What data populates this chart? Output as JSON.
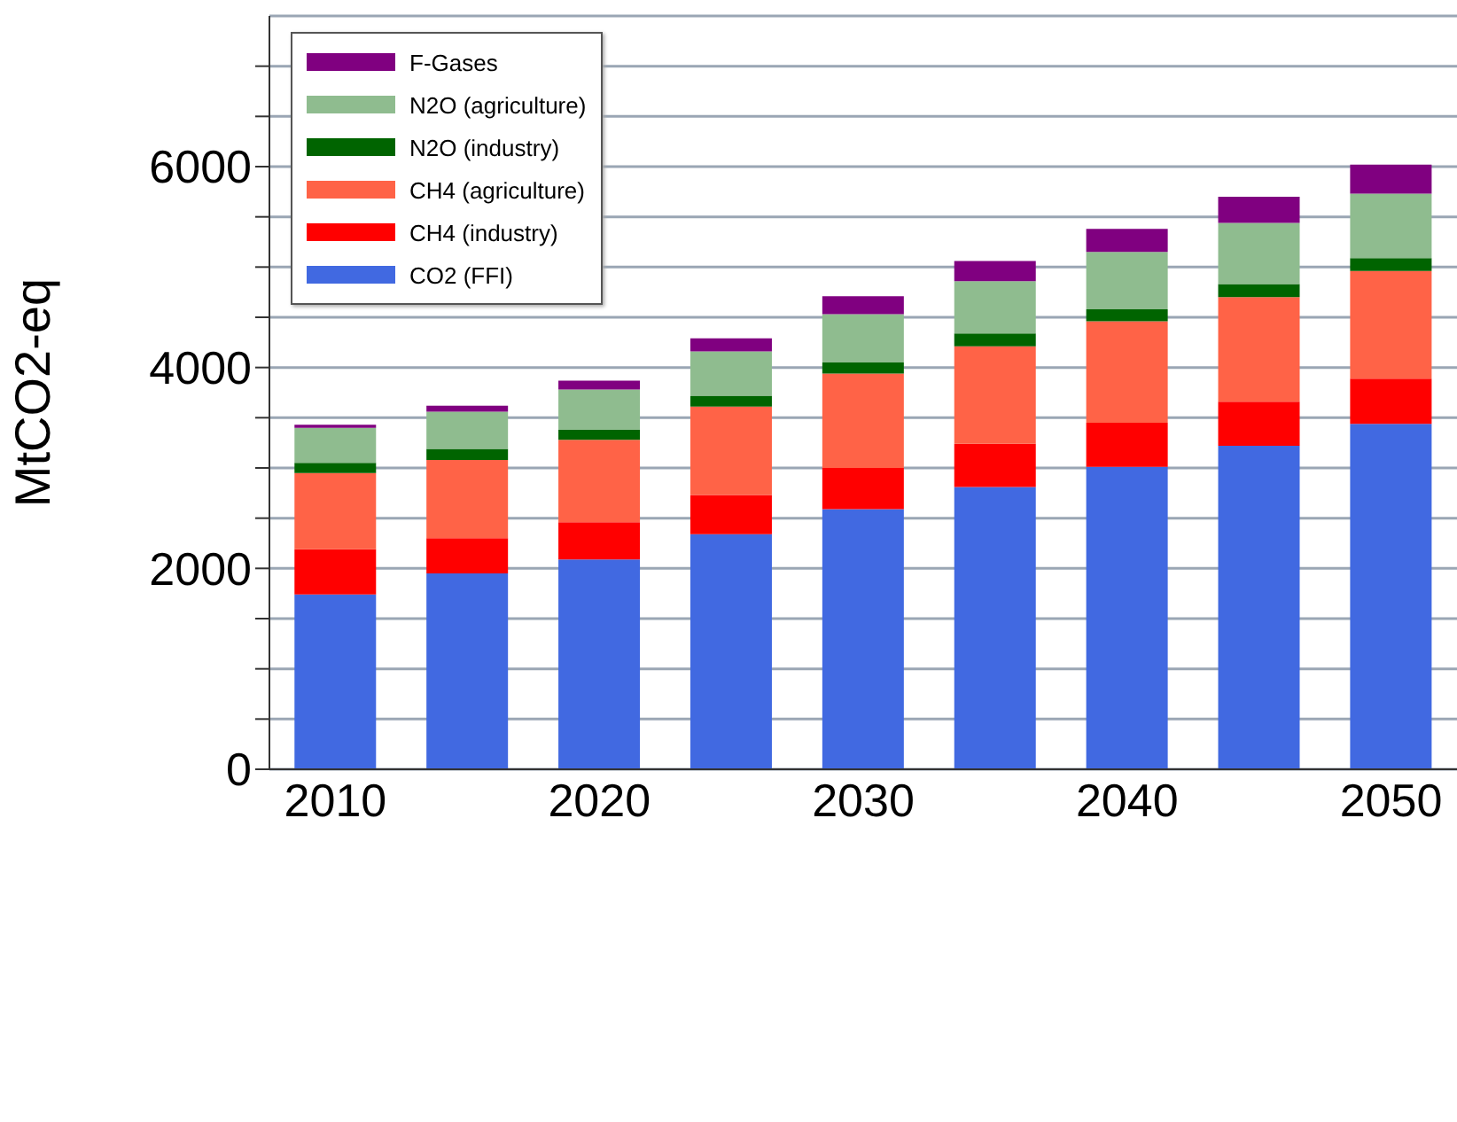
{
  "chart_data": {
    "type": "bar",
    "stacked": true,
    "ylabel": "MtCO2-eq",
    "categories": [
      "2010",
      null,
      "2020",
      null,
      "2030",
      null,
      "2040",
      null,
      "2050"
    ],
    "series": [
      {
        "name": "CO2 (FFI)",
        "color": "#4169e1",
        "values": [
          1740,
          1950,
          2090,
          2340,
          2590,
          2810,
          3010,
          3220,
          3440
        ]
      },
      {
        "name": "CH4 (industry)",
        "color": "#ff0000",
        "values": [
          450,
          350,
          370,
          390,
          410,
          430,
          440,
          440,
          450
        ]
      },
      {
        "name": "CH4 (agriculture)",
        "color": "#ff6347",
        "values": [
          760,
          780,
          820,
          880,
          940,
          970,
          1010,
          1040,
          1070
        ]
      },
      {
        "name": "N2O (industry)",
        "color": "#006400",
        "values": [
          100,
          110,
          100,
          110,
          110,
          130,
          120,
          130,
          130
        ]
      },
      {
        "name": "N2O (agriculture)",
        "color": "#8fbc8f",
        "values": [
          350,
          370,
          400,
          440,
          480,
          520,
          570,
          610,
          640
        ]
      },
      {
        "name": "F-Gases",
        "color": "#800080",
        "values": [
          30,
          60,
          90,
          130,
          180,
          200,
          230,
          260,
          290
        ]
      }
    ],
    "ylim": [
      0,
      7500
    ],
    "yticks": [
      0,
      {
        "value": 500,
        "label": null
      },
      2000,
      {
        "value": 1000,
        "label": null
      },
      {
        "value": 1500,
        "label": null
      },
      {
        "value": 2500,
        "label": null
      },
      {
        "value": 3000,
        "label": null
      },
      {
        "value": 3500,
        "label": null
      },
      4000,
      {
        "value": 4500,
        "label": null
      },
      {
        "value": 5000,
        "label": null
      },
      {
        "value": 5500,
        "label": null
      },
      6000,
      {
        "value": 6500,
        "label": null
      },
      {
        "value": 7000,
        "label": null
      }
    ],
    "grid": "y",
    "legend": "top left"
  }
}
